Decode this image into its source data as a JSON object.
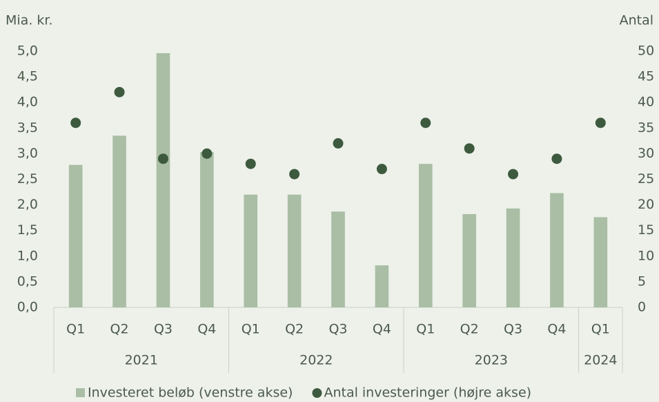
{
  "chart_data": {
    "type": "bar_dot",
    "y_label": "Mia. kr.",
    "y2_label": "Antal",
    "categories": [
      "Q1",
      "Q2",
      "Q3",
      "Q4",
      "Q1",
      "Q2",
      "Q3",
      "Q4",
      "Q1",
      "Q2",
      "Q3",
      "Q4",
      "Q1"
    ],
    "x_groups": [
      {
        "label": "2021",
        "size": 4
      },
      {
        "label": "2022",
        "size": 4
      },
      {
        "label": "2023",
        "size": 4
      },
      {
        "label": "2024",
        "size": 1
      }
    ],
    "series": [
      {
        "name": "Investeret beløb (venstre akse)",
        "color": "#a9bea5",
        "kind": "bar",
        "values": [
          2.78,
          3.35,
          4.96,
          3.03,
          2.2,
          2.2,
          1.87,
          0.82,
          2.8,
          1.82,
          1.93,
          2.23,
          1.76
        ]
      },
      {
        "name": "Antal investeringer (højre akse)",
        "color": "#3d5a3f",
        "kind": "dot",
        "axis": "y2",
        "values": [
          36,
          42,
          29,
          30,
          28,
          26,
          32,
          27,
          36,
          31,
          26,
          29,
          36
        ]
      }
    ],
    "ylim": [
      0,
      5
    ],
    "yticks": [
      {
        "value": 0,
        "label": "0,0"
      },
      {
        "value": 0.5,
        "label": "0,5"
      },
      {
        "value": 1,
        "label": "1,0"
      },
      {
        "value": 1.5,
        "label": "1,5"
      },
      {
        "value": 2,
        "label": "2,0"
      },
      {
        "value": 2.5,
        "label": "2,5"
      },
      {
        "value": 3,
        "label": "3,0"
      },
      {
        "value": 3.5,
        "label": "3,5"
      },
      {
        "value": 4,
        "label": "4,0"
      },
      {
        "value": 4.5,
        "label": "4,5"
      },
      {
        "value": 5,
        "label": "5,0"
      }
    ],
    "y2lim": [
      0,
      50
    ],
    "y2ticks": [
      0,
      5,
      10,
      15,
      20,
      25,
      30,
      35,
      40,
      45,
      50
    ],
    "legend": "bottom"
  }
}
